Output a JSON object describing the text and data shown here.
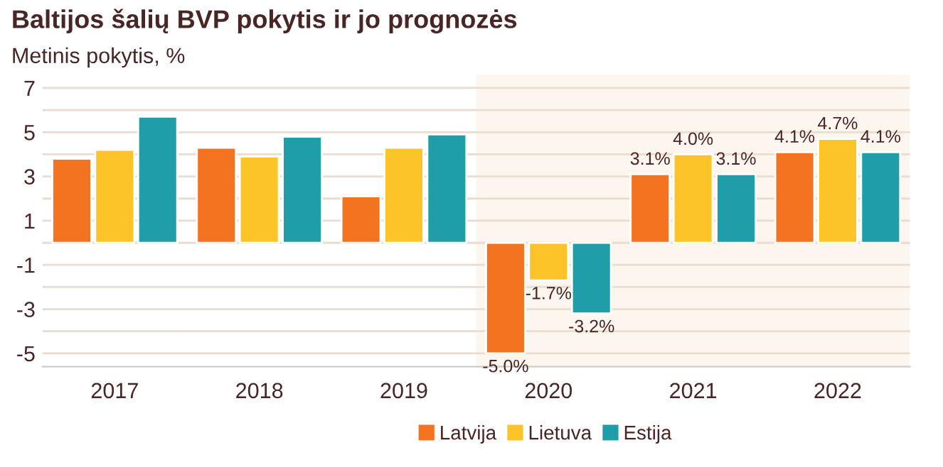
{
  "chart_data": {
    "type": "bar",
    "title": "Baltijos šalių BVP pokytis ir jo prognozės",
    "subtitle": "Metinis pokytis, %",
    "categories": [
      "2017",
      "2018",
      "2019",
      "2020",
      "2021",
      "2022"
    ],
    "series": [
      {
        "name": "Latvija",
        "color": "#f47321",
        "values": [
          3.8,
          4.3,
          2.1,
          -5.0,
          3.1,
          4.1
        ],
        "value_labels": [
          null,
          null,
          null,
          "-5.0%",
          "3.1%",
          "4.1%"
        ]
      },
      {
        "name": "Lietuva",
        "color": "#fdc42a",
        "values": [
          4.2,
          3.9,
          4.3,
          -1.7,
          4.0,
          4.7
        ],
        "value_labels": [
          null,
          null,
          null,
          "-1.7%",
          "4.0%",
          "4.7%"
        ]
      },
      {
        "name": "Estija",
        "color": "#1f9ea9",
        "values": [
          5.7,
          4.8,
          4.9,
          -3.2,
          3.1,
          4.1
        ],
        "value_labels": [
          null,
          null,
          null,
          "-3.2%",
          "3.1%",
          "4.1%"
        ]
      }
    ],
    "ylim": [
      -5.6,
      7.6
    ],
    "yticks": [
      -5,
      {
        "value": -4,
        "label": null
      },
      -3,
      {
        "value": -2,
        "label": null
      },
      -1,
      {
        "value": 0,
        "label": null
      },
      1,
      {
        "value": 2,
        "label": null
      },
      3,
      {
        "value": 4,
        "label": null
      },
      5,
      {
        "value": 6,
        "label": null
      },
      7
    ],
    "bands": [
      {
        "axis": "x",
        "from": "2020",
        "to": "2022",
        "color": "#fdf6ee"
      }
    ],
    "grid": "y",
    "legend": "bottom"
  }
}
